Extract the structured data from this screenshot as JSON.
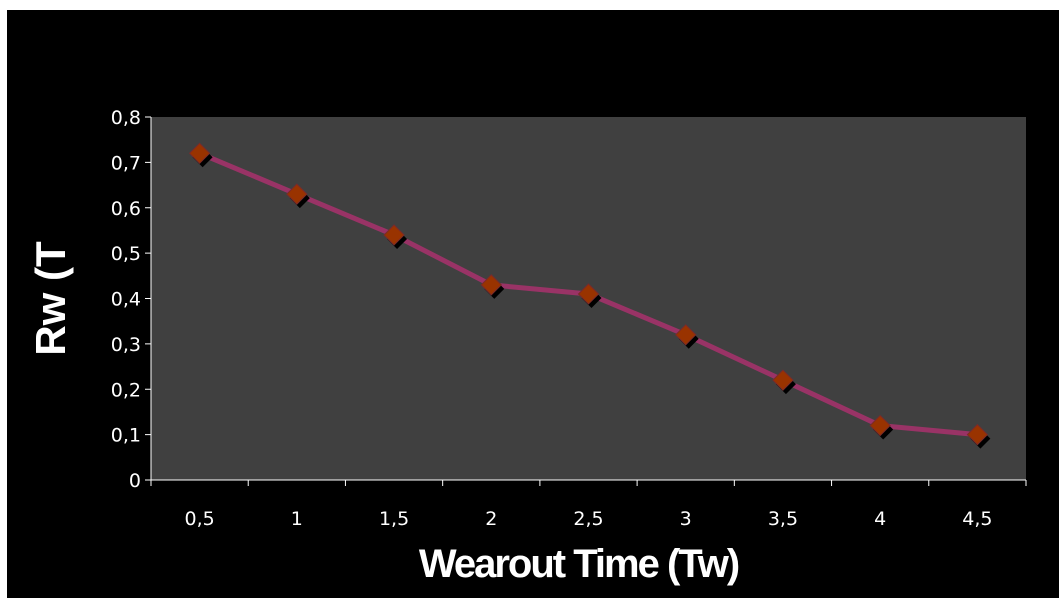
{
  "chart_data": {
    "type": "line",
    "title": "",
    "xlabel": "Wearout Time (Tw)",
    "ylabel": "Rw (T",
    "categories": [
      "0,5",
      "1",
      "1,5",
      "2",
      "2,5",
      "3",
      "3,5",
      "4",
      "4,5"
    ],
    "series": [
      {
        "values": [
          0.72,
          0.63,
          0.54,
          0.43,
          0.41,
          0.32,
          0.22,
          0.12,
          0.1
        ]
      }
    ],
    "ylim": [
      0,
      0.8
    ],
    "yticks": [
      "0",
      "0,1",
      "0,2",
      "0,3",
      "0,4",
      "0,5",
      "0,6",
      "0,7",
      "0,8"
    ],
    "grid": false,
    "legend": "none",
    "colors": {
      "background": "#000000",
      "plot_area": "#404040",
      "line": "#993366",
      "marker": "#993300",
      "marker_shadow": "#000000",
      "text": "#ffffff"
    }
  }
}
